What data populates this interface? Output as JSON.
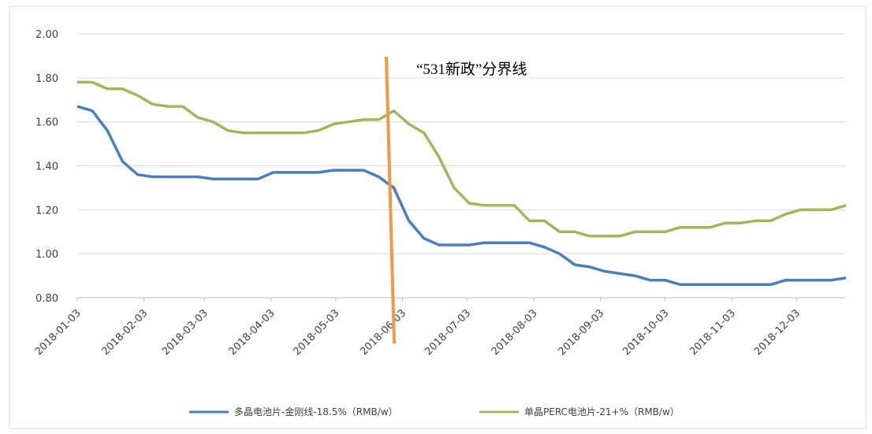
{
  "chart_data": {
    "type": "line",
    "annotation": "“531新政”分界线",
    "x": [
      "2018-01-03",
      "2018-01-10",
      "2018-01-17",
      "2018-01-24",
      "2018-01-31",
      "2018-02-07",
      "2018-02-14",
      "2018-02-21",
      "2018-02-28",
      "2018-03-07",
      "2018-03-14",
      "2018-03-21",
      "2018-03-28",
      "2018-04-04",
      "2018-04-11",
      "2018-04-18",
      "2018-04-25",
      "2018-05-02",
      "2018-05-09",
      "2018-05-16",
      "2018-05-23",
      "2018-05-30",
      "2018-06-06",
      "2018-06-13",
      "2018-06-20",
      "2018-06-27",
      "2018-07-04",
      "2018-07-11",
      "2018-07-18",
      "2018-07-25",
      "2018-08-01",
      "2018-08-08",
      "2018-08-15",
      "2018-08-22",
      "2018-08-29",
      "2018-09-05",
      "2018-09-12",
      "2018-09-19",
      "2018-09-26",
      "2018-10-03",
      "2018-10-10",
      "2018-10-17",
      "2018-10-24",
      "2018-10-31",
      "2018-11-07",
      "2018-11-14",
      "2018-11-21",
      "2018-11-28",
      "2018-12-05",
      "2018-12-12",
      "2018-12-19",
      "2018-12-26"
    ],
    "series": [
      {
        "name": "多晶电池片-金刚线-18.5%（RMB/w）",
        "color": "#4a7ebb",
        "values": [
          1.67,
          1.65,
          1.56,
          1.42,
          1.36,
          1.35,
          1.35,
          1.35,
          1.35,
          1.34,
          1.34,
          1.34,
          1.34,
          1.37,
          1.37,
          1.37,
          1.37,
          1.38,
          1.38,
          1.38,
          1.35,
          1.3,
          1.15,
          1.07,
          1.04,
          1.04,
          1.04,
          1.05,
          1.05,
          1.05,
          1.05,
          1.03,
          1.0,
          0.95,
          0.94,
          0.92,
          0.91,
          0.9,
          0.88,
          0.88,
          0.86,
          0.86,
          0.86,
          0.86,
          0.86,
          0.86,
          0.86,
          0.88,
          0.88,
          0.88,
          0.88,
          0.89
        ]
      },
      {
        "name": "单晶PERC电池片-21+%（RMB/w）",
        "color": "#9bbb59",
        "values": [
          1.78,
          1.78,
          1.75,
          1.75,
          1.72,
          1.68,
          1.67,
          1.67,
          1.62,
          1.6,
          1.56,
          1.55,
          1.55,
          1.55,
          1.55,
          1.55,
          1.56,
          1.59,
          1.6,
          1.61,
          1.61,
          1.65,
          1.59,
          1.55,
          1.44,
          1.3,
          1.23,
          1.22,
          1.22,
          1.22,
          1.15,
          1.15,
          1.1,
          1.1,
          1.08,
          1.08,
          1.08,
          1.1,
          1.1,
          1.1,
          1.12,
          1.12,
          1.12,
          1.14,
          1.14,
          1.15,
          1.15,
          1.18,
          1.2,
          1.2,
          1.2,
          1.22
        ]
      }
    ],
    "xlim": [
      "2018-01-03",
      "2018-12-26"
    ],
    "xticks": [
      "2018-01-03",
      "2018-02-03",
      "2018-03-03",
      "2018-04-03",
      "2018-05-03",
      "2018-06-03",
      "2018-07-03",
      "2018-08-03",
      "2018-09-03",
      "2018-10-03",
      "2018-11-03",
      "2018-12-03"
    ],
    "ylim": [
      0.8,
      2.0
    ],
    "yticks": [
      {
        "value": 0.8,
        "label": "0.80"
      },
      {
        "value": 1.0,
        "label": "1.00"
      },
      {
        "value": 1.2,
        "label": "1.20"
      },
      {
        "value": 1.4,
        "label": "1.40"
      },
      {
        "value": 1.6,
        "label": "1.60"
      },
      {
        "value": 1.8,
        "label": "1.80"
      },
      {
        "value": 2.0,
        "label": "2.00"
      }
    ],
    "grid": true,
    "legend": "bottom"
  }
}
